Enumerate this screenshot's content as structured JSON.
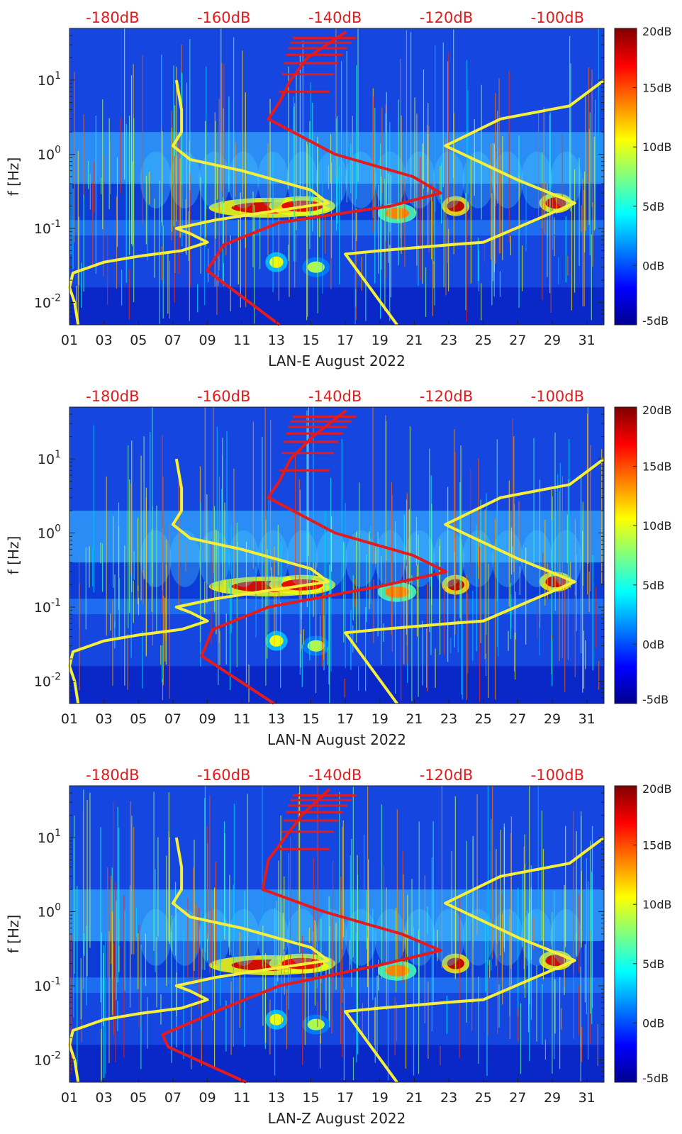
{
  "colors": {
    "yellow_curve": "#f6ef3a",
    "red_curve": "#e41a1c",
    "db_label": "#e41a1c"
  },
  "chart_data": [
    {
      "type": "heatmap",
      "title": "LAN-E",
      "xlabel": "LAN-E August 2022",
      "ylabel": "f [Hz]",
      "x_ticks": [
        "01",
        "03",
        "05",
        "07",
        "09",
        "11",
        "13",
        "15",
        "17",
        "19",
        "21",
        "23",
        "25",
        "27",
        "29",
        "31"
      ],
      "y_ticks": [
        "10^-2",
        "10^-1",
        "10^0",
        "10^1"
      ],
      "xlim": [
        1,
        32
      ],
      "ylim_hz": [
        0.005,
        50
      ],
      "colorbar": {
        "ticks": [
          "20dB",
          "15dB",
          "10dB",
          "5dB",
          "0dB",
          "-5dB"
        ],
        "range_db": [
          -5,
          20
        ]
      },
      "top_labels": [
        "-180dB",
        "-160dB",
        "-140dB",
        "-120dB",
        "-100dB"
      ],
      "red_curve_db_range": [
        -180,
        -100
      ],
      "series": [
        {
          "name": "yellow-curve-left",
          "color": "yellow",
          "points": [
            [
              1.5,
              0.005
            ],
            [
              1.3,
              0.01
            ],
            [
              1.0,
              0.016
            ],
            [
              1.2,
              0.025
            ],
            [
              3,
              0.035
            ],
            [
              5,
              0.042
            ],
            [
              7.5,
              0.05
            ],
            [
              9,
              0.065
            ],
            [
              8.0,
              0.085
            ],
            [
              7.2,
              0.1
            ],
            [
              9.5,
              0.13
            ],
            [
              12,
              0.16
            ],
            [
              16,
              0.22
            ],
            [
              15,
              0.33
            ],
            [
              11,
              0.6
            ],
            [
              8,
              0.85
            ],
            [
              7.0,
              1.3
            ],
            [
              7.5,
              2.0
            ],
            [
              7.5,
              4.0
            ],
            [
              7.2,
              10
            ]
          ]
        },
        {
          "name": "yellow-curve-right",
          "color": "yellow",
          "points": [
            [
              20,
              0.005
            ],
            [
              17,
              0.045
            ],
            [
              19,
              0.05
            ],
            [
              23,
              0.06
            ],
            [
              25,
              0.065
            ],
            [
              30.3,
              0.22
            ],
            [
              27,
              0.45
            ],
            [
              22.8,
              1.3
            ],
            [
              26,
              3.0
            ],
            [
              30,
              4.5
            ],
            [
              32,
              10
            ]
          ]
        },
        {
          "name": "red-curve-psd",
          "color": "red",
          "points": [
            [
              -150,
              0.005
            ],
            [
              -163,
              0.027
            ],
            [
              -160,
              0.06
            ],
            [
              -150,
              0.12
            ],
            [
              -130,
              0.2
            ],
            [
              -121,
              0.3
            ],
            [
              -126,
              0.5
            ],
            [
              -140,
              1.0
            ],
            [
              -152,
              3.0
            ],
            [
              -150,
              5.0
            ],
            [
              -148,
              10
            ],
            [
              -145,
              20
            ],
            [
              -138,
              45
            ]
          ]
        }
      ]
    },
    {
      "type": "heatmap",
      "title": "LAN-N",
      "xlabel": "LAN-N August 2022",
      "ylabel": "f [Hz]",
      "x_ticks": [
        "01",
        "03",
        "05",
        "07",
        "09",
        "11",
        "13",
        "15",
        "17",
        "19",
        "21",
        "23",
        "25",
        "27",
        "29",
        "31"
      ],
      "y_ticks": [
        "10^-2",
        "10^-1",
        "10^0",
        "10^1"
      ],
      "xlim": [
        1,
        32
      ],
      "ylim_hz": [
        0.005,
        50
      ],
      "colorbar": {
        "ticks": [
          "20dB",
          "15dB",
          "10dB",
          "5dB",
          "0dB",
          "-5dB"
        ],
        "range_db": [
          -5,
          20
        ]
      },
      "top_labels": [
        "-180dB",
        "-160dB",
        "-140dB",
        "-120dB",
        "-100dB"
      ],
      "red_curve_db_range": [
        -180,
        -100
      ],
      "series": [
        {
          "name": "yellow-curve-left",
          "color": "yellow",
          "points": [
            [
              1.5,
              0.005
            ],
            [
              1.3,
              0.01
            ],
            [
              1.0,
              0.016
            ],
            [
              1.2,
              0.025
            ],
            [
              3,
              0.035
            ],
            [
              5,
              0.042
            ],
            [
              7.5,
              0.05
            ],
            [
              9,
              0.065
            ],
            [
              8.0,
              0.085
            ],
            [
              7.2,
              0.1
            ],
            [
              9.5,
              0.13
            ],
            [
              12,
              0.16
            ],
            [
              16,
              0.22
            ],
            [
              15,
              0.33
            ],
            [
              11,
              0.6
            ],
            [
              8,
              0.85
            ],
            [
              7.0,
              1.3
            ],
            [
              7.5,
              2.0
            ],
            [
              7.5,
              4.0
            ],
            [
              7.2,
              10
            ]
          ]
        },
        {
          "name": "yellow-curve-right",
          "color": "yellow",
          "points": [
            [
              20,
              0.005
            ],
            [
              17,
              0.045
            ],
            [
              19,
              0.05
            ],
            [
              23,
              0.06
            ],
            [
              25,
              0.065
            ],
            [
              30.3,
              0.22
            ],
            [
              27,
              0.45
            ],
            [
              22.8,
              1.3
            ],
            [
              26,
              3.0
            ],
            [
              30,
              4.5
            ],
            [
              32,
              10
            ]
          ]
        },
        {
          "name": "red-curve-psd",
          "color": "red",
          "points": [
            [
              -151,
              0.005
            ],
            [
              -164,
              0.022
            ],
            [
              -162,
              0.05
            ],
            [
              -152,
              0.1
            ],
            [
              -132,
              0.19
            ],
            [
              -120,
              0.3
            ],
            [
              -126,
              0.5
            ],
            [
              -140,
              1.0
            ],
            [
              -152,
              3.0
            ],
            [
              -150,
              5.0
            ],
            [
              -148,
              10
            ],
            [
              -144,
              20
            ],
            [
              -138,
              45
            ]
          ]
        }
      ]
    },
    {
      "type": "heatmap",
      "title": "LAN-Z",
      "xlabel": "LAN-Z August 2022",
      "ylabel": "f [Hz]",
      "x_ticks": [
        "01",
        "03",
        "05",
        "07",
        "09",
        "11",
        "13",
        "15",
        "17",
        "19",
        "21",
        "23",
        "25",
        "27",
        "29",
        "31"
      ],
      "y_ticks": [
        "10^-2",
        "10^-1",
        "10^0",
        "10^1"
      ],
      "xlim": [
        1,
        32
      ],
      "ylim_hz": [
        0.005,
        50
      ],
      "colorbar": {
        "ticks": [
          "20dB",
          "15dB",
          "10dB",
          "5dB",
          "0dB",
          "-5dB"
        ],
        "range_db": [
          -5,
          20
        ]
      },
      "top_labels": [
        "-180dB",
        "-160dB",
        "-140dB",
        "-120dB",
        "-100dB"
      ],
      "red_curve_db_range": [
        -180,
        -100
      ],
      "series": [
        {
          "name": "yellow-curve-left",
          "color": "yellow",
          "points": [
            [
              1.5,
              0.005
            ],
            [
              1.3,
              0.01
            ],
            [
              1.0,
              0.016
            ],
            [
              1.2,
              0.025
            ],
            [
              3,
              0.035
            ],
            [
              5,
              0.042
            ],
            [
              7.5,
              0.05
            ],
            [
              9,
              0.065
            ],
            [
              8.0,
              0.085
            ],
            [
              7.2,
              0.1
            ],
            [
              9.5,
              0.13
            ],
            [
              12,
              0.16
            ],
            [
              16,
              0.22
            ],
            [
              15,
              0.33
            ],
            [
              11,
              0.6
            ],
            [
              8,
              0.85
            ],
            [
              7.0,
              1.3
            ],
            [
              7.5,
              2.0
            ],
            [
              7.5,
              4.0
            ],
            [
              7.2,
              10
            ]
          ]
        },
        {
          "name": "yellow-curve-right",
          "color": "yellow",
          "points": [
            [
              20,
              0.005
            ],
            [
              17,
              0.045
            ],
            [
              19,
              0.05
            ],
            [
              23,
              0.06
            ],
            [
              25,
              0.065
            ],
            [
              30.3,
              0.22
            ],
            [
              27,
              0.45
            ],
            [
              22.8,
              1.3
            ],
            [
              26,
              3.0
            ],
            [
              30,
              4.5
            ],
            [
              32,
              10
            ]
          ]
        },
        {
          "name": "red-curve-psd",
          "color": "red",
          "points": [
            [
              -156,
              0.005
            ],
            [
              -170,
              0.015
            ],
            [
              -171,
              0.022
            ],
            [
              -160,
              0.05
            ],
            [
              -150,
              0.1
            ],
            [
              -132,
              0.19
            ],
            [
              -121,
              0.3
            ],
            [
              -128,
              0.5
            ],
            [
              -142,
              1.0
            ],
            [
              -153,
              2.0
            ],
            [
              -152,
              5.0
            ],
            [
              -149,
              10
            ],
            [
              -146,
              20
            ],
            [
              -141,
              45
            ]
          ]
        }
      ]
    }
  ]
}
